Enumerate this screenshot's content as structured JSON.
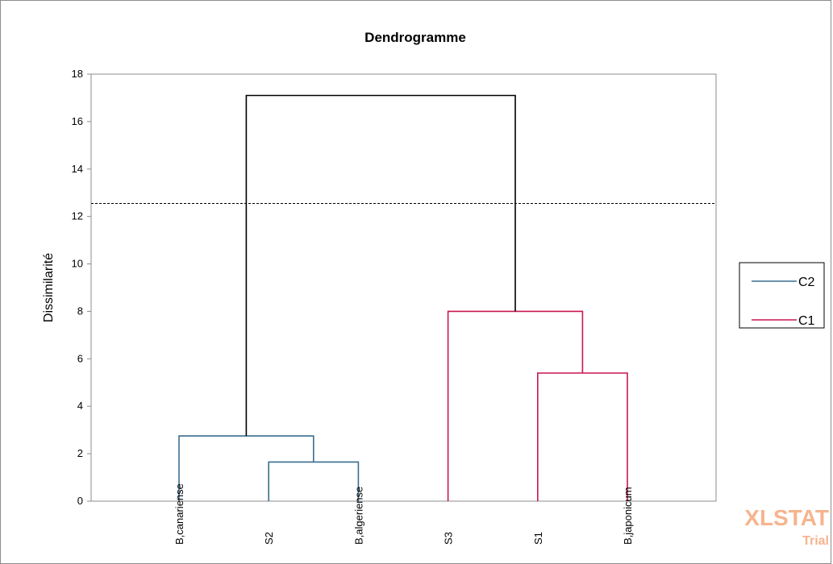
{
  "chart_data": {
    "type": "dendrogram",
    "title": "Dendrogramme",
    "ylabel": "Dissimilarité",
    "ylim": [
      0,
      18
    ],
    "yticks": [
      "0",
      "2",
      "4",
      "6",
      "8",
      "10",
      "12",
      "14",
      "16",
      "18"
    ],
    "leaves": [
      "B,canariense",
      "S2",
      "B,algeriense",
      "S3",
      "S1",
      "B,japonicum"
    ],
    "merges": [
      {
        "name": "S2 + B,algeriense",
        "left": 1,
        "right": 2,
        "height": 1.65,
        "cluster": "C2"
      },
      {
        "name": "B,canariense + (S2,B,algeriense)",
        "left": 0,
        "right": "m0",
        "height": 2.75,
        "cluster": "C2"
      },
      {
        "name": "S1 + B,japonicum",
        "left": 4,
        "right": 5,
        "height": 5.4,
        "cluster": "C1"
      },
      {
        "name": "S3 + (S1,B,japonicum)",
        "left": 3,
        "right": "m2",
        "height": 8.0,
        "cluster": "C1"
      },
      {
        "name": "root",
        "left": "m1",
        "right": "m3",
        "height": 17.1,
        "cluster": "root"
      }
    ],
    "cut_line": 12.55,
    "legend": {
      "position": "right",
      "entries": [
        {
          "label": "C2",
          "color": "#3a6f8f"
        },
        {
          "label": "C1",
          "color": "#c8174e"
        }
      ]
    },
    "colors": {
      "C2": "#3a6f8f",
      "C1": "#c8174e",
      "root": "#000000"
    },
    "grid": false
  },
  "watermark": {
    "line1": "XLSTAT",
    "line2": "Trial"
  }
}
